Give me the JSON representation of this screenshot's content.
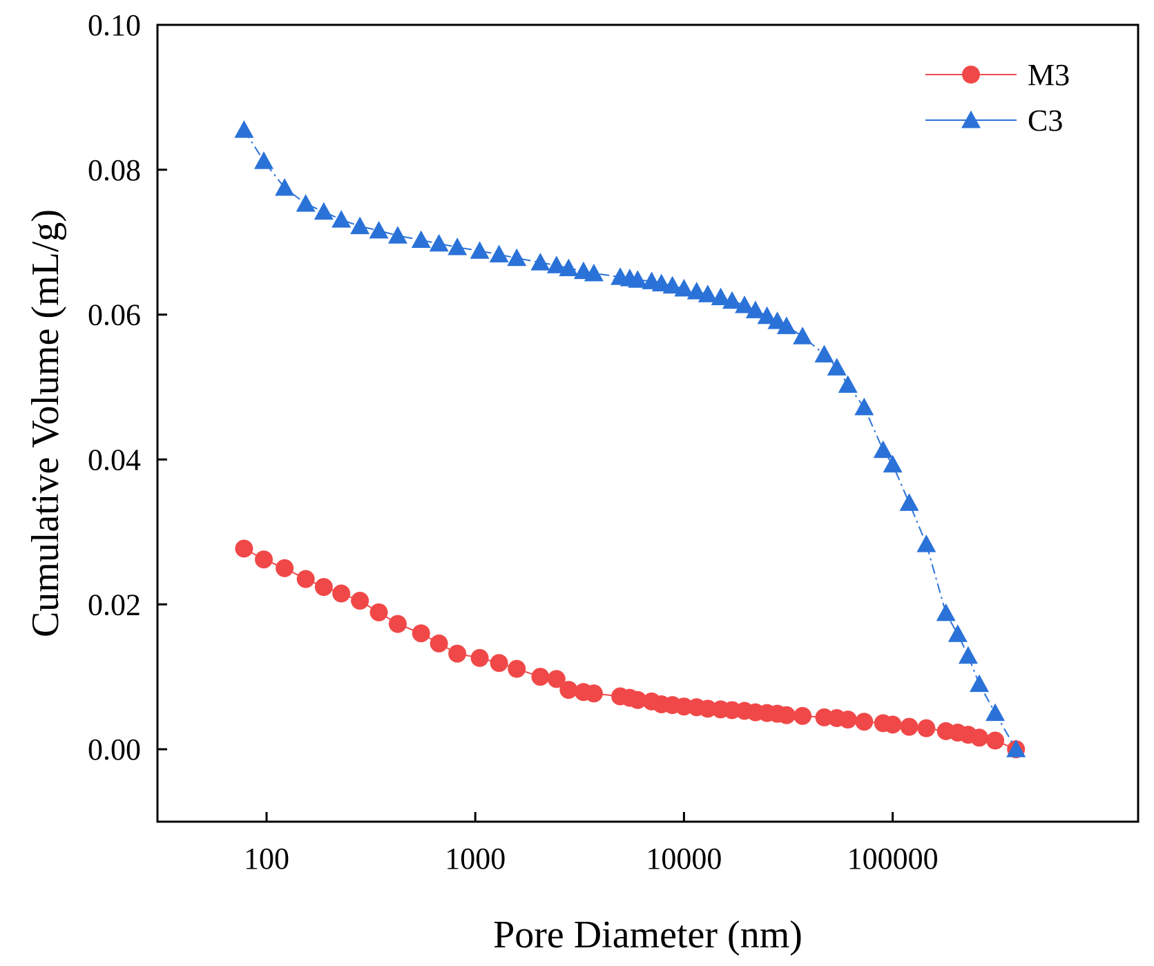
{
  "chart_data": {
    "type": "scatter",
    "title": "",
    "xlabel": "Pore Diameter (nm)",
    "ylabel": "Cumulative Volume (mL/g)",
    "x_scale": "log",
    "xlim": [
      30,
      1500000
    ],
    "ylim": [
      -0.01,
      0.1
    ],
    "x_ticks": [
      {
        "value": 100,
        "label": "100"
      },
      {
        "value": 1000,
        "label": "1000"
      },
      {
        "value": 10000,
        "label": "10000"
      },
      {
        "value": 100000,
        "label": "100000"
      }
    ],
    "y_ticks": [
      {
        "value": 0.0,
        "label": "0.00"
      },
      {
        "value": 0.02,
        "label": "0.02"
      },
      {
        "value": 0.04,
        "label": "0.04"
      },
      {
        "value": 0.06,
        "label": "0.06"
      },
      {
        "value": 0.08,
        "label": "0.08"
      },
      {
        "value": 0.1,
        "label": "0.10"
      }
    ],
    "grid": false,
    "legend_position": "top-right",
    "series": [
      {
        "name": "M3",
        "marker": "circle",
        "color": "#f04848",
        "x": [
          78,
          97,
          122,
          154,
          188,
          228,
          280,
          345,
          425,
          550,
          670,
          820,
          1050,
          1300,
          1580,
          2050,
          2450,
          2800,
          3300,
          3700,
          4950,
          5500,
          6000,
          7000,
          7800,
          8800,
          10000,
          11500,
          13000,
          15000,
          17000,
          19500,
          22000,
          25000,
          28000,
          31000,
          37000,
          47000,
          54000,
          61000,
          73000,
          90000,
          100000,
          120000,
          145000,
          180000,
          205000,
          230000,
          260000,
          310000,
          390000
        ],
        "y": [
          0.0277,
          0.0262,
          0.025,
          0.0235,
          0.0224,
          0.0215,
          0.0205,
          0.0189,
          0.0173,
          0.016,
          0.0146,
          0.0132,
          0.0126,
          0.0119,
          0.0111,
          0.01,
          0.0097,
          0.0082,
          0.0079,
          0.0077,
          0.0073,
          0.0071,
          0.0068,
          0.0066,
          0.0062,
          0.0061,
          0.0059,
          0.0058,
          0.0056,
          0.0055,
          0.0054,
          0.0053,
          0.0051,
          0.005,
          0.0049,
          0.0047,
          0.0046,
          0.0044,
          0.0043,
          0.0041,
          0.0038,
          0.0036,
          0.0034,
          0.0031,
          0.0029,
          0.0025,
          0.0023,
          0.002,
          0.0016,
          0.0012,
          0.0
        ]
      },
      {
        "name": "C3",
        "marker": "triangle",
        "color": "#2a72d8",
        "x": [
          78,
          97,
          122,
          154,
          188,
          228,
          280,
          345,
          425,
          550,
          670,
          820,
          1050,
          1300,
          1580,
          2050,
          2450,
          2800,
          3300,
          3700,
          4950,
          5500,
          6000,
          7000,
          7800,
          8800,
          10000,
          11500,
          13000,
          15000,
          17000,
          19500,
          22000,
          25000,
          28000,
          31000,
          37000,
          47000,
          54000,
          61000,
          73000,
          90000,
          100000,
          120000,
          145000,
          180000,
          205000,
          230000,
          260000,
          310000,
          390000
        ],
        "y": [
          0.0855,
          0.0812,
          0.0775,
          0.0753,
          0.0742,
          0.0731,
          0.0722,
          0.0716,
          0.0709,
          0.0703,
          0.0698,
          0.0693,
          0.0688,
          0.0683,
          0.0678,
          0.0672,
          0.0668,
          0.0664,
          0.066,
          0.0657,
          0.0652,
          0.065,
          0.0648,
          0.0646,
          0.0643,
          0.064,
          0.0636,
          0.0632,
          0.0628,
          0.0624,
          0.0619,
          0.0613,
          0.0606,
          0.0598,
          0.0591,
          0.0584,
          0.057,
          0.0545,
          0.0527,
          0.0503,
          0.0472,
          0.0413,
          0.0393,
          0.034,
          0.0283,
          0.0188,
          0.0159,
          0.0129,
          0.009,
          0.005,
          0.0
        ]
      }
    ]
  }
}
